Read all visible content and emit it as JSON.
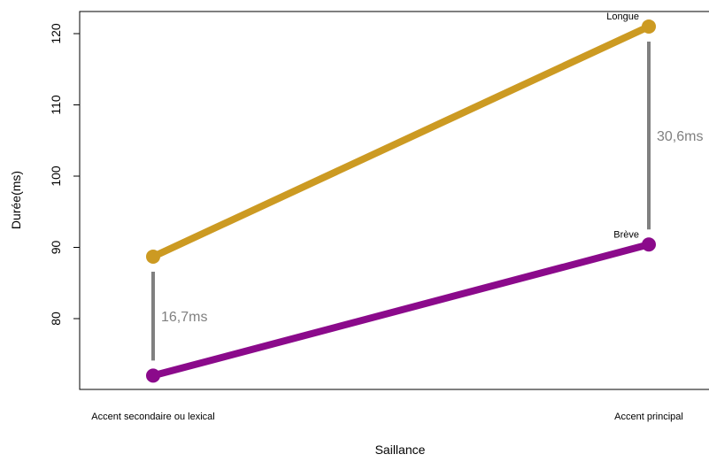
{
  "chart_data": {
    "type": "line",
    "xlabel": "Saillance",
    "ylabel": "Durée(ms)",
    "categories": [
      "Accent secondaire ou lexical",
      "Accent principal"
    ],
    "ylim": [
      70,
      123
    ],
    "yticks": [
      80,
      90,
      100,
      110,
      120
    ],
    "grid": false,
    "series": [
      {
        "name": "Longue",
        "values": [
          88.7,
          121.0
        ],
        "color": "#cc9a22"
      },
      {
        "name": "Brève",
        "values": [
          72.0,
          90.4
        ],
        "color": "#8b0a8b"
      }
    ],
    "annotations": [
      {
        "category_index": 0,
        "text": "16,7ms",
        "color": "#808080"
      },
      {
        "category_index": 1,
        "text": "30,6ms",
        "color": "#808080"
      }
    ]
  }
}
